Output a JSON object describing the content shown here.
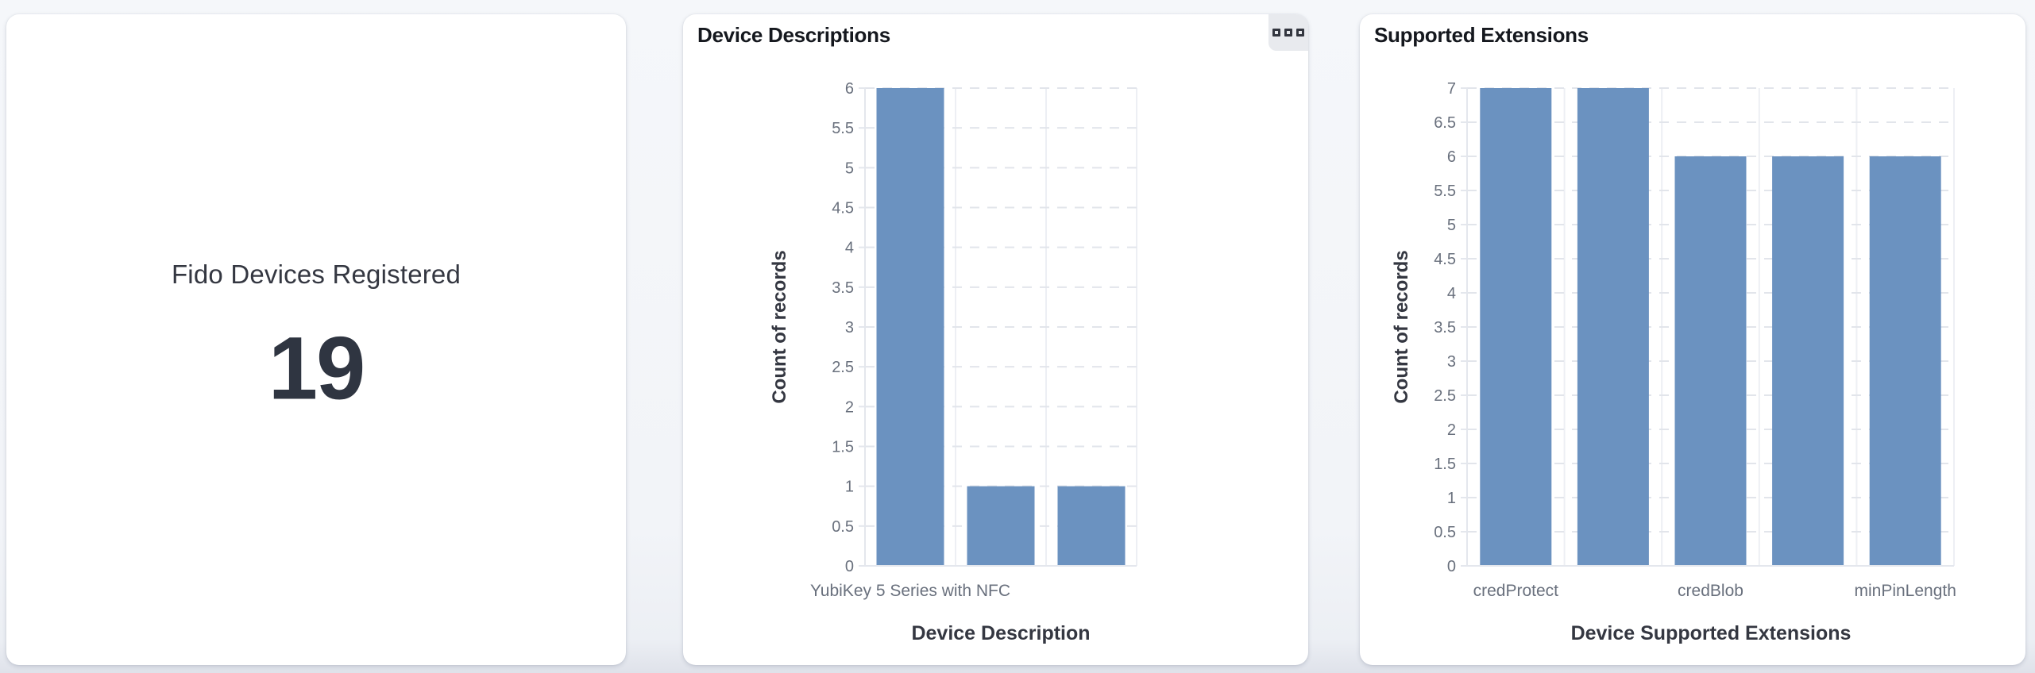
{
  "colors": {
    "bar": "#6b92c0",
    "tick_label": "#69707d",
    "axis_title": "#343741",
    "panel_title": "#15181e",
    "grid_dashed": "#e2e5eb",
    "grid_band": "#edeff4",
    "axis_line": "#e4e7ed",
    "metric_text": "#343741",
    "page_bg": "#f2f4f8",
    "card_bg": "#ffffff",
    "menu_button_bg": "#e8eaee",
    "menu_icon": "#33363f"
  },
  "panels": {
    "metric": {
      "label": "Fido Devices Registered",
      "value": "19"
    },
    "device_descriptions": {
      "title": "Device Descriptions",
      "menu_icon": "three-squares-icon"
    },
    "supported_extensions": {
      "title": "Supported Extensions"
    }
  },
  "chart_data": [
    {
      "panel": "device_descriptions",
      "type": "bar",
      "title": "Device Descriptions",
      "xlabel": "Device Description",
      "ylabel": "Count of records",
      "ylim": [
        0,
        6
      ],
      "ytick_step": 0.5,
      "values": [
        6,
        1,
        1
      ],
      "x_tick_labels": [
        {
          "text": "YubiKey 5 Series with NFC",
          "band": 0
        }
      ],
      "bar_color": "#6b92c0",
      "legend": "none",
      "grid": "horizontal-dashed, vertical-band-lines"
    },
    {
      "panel": "supported_extensions",
      "type": "bar",
      "title": "Supported Extensions",
      "xlabel": "Device Supported Extensions",
      "ylabel": "Count of records",
      "ylim": [
        0,
        7
      ],
      "ytick_step": 0.5,
      "values": [
        7,
        7,
        6,
        6,
        6
      ],
      "x_tick_labels": [
        {
          "text": "credProtect",
          "band": 0
        },
        {
          "text": "credBlob",
          "band": 2
        },
        {
          "text": "minPinLength",
          "band": 4
        }
      ],
      "bar_color": "#6b92c0",
      "legend": "none",
      "grid": "horizontal-dashed, vertical-band-lines"
    }
  ]
}
